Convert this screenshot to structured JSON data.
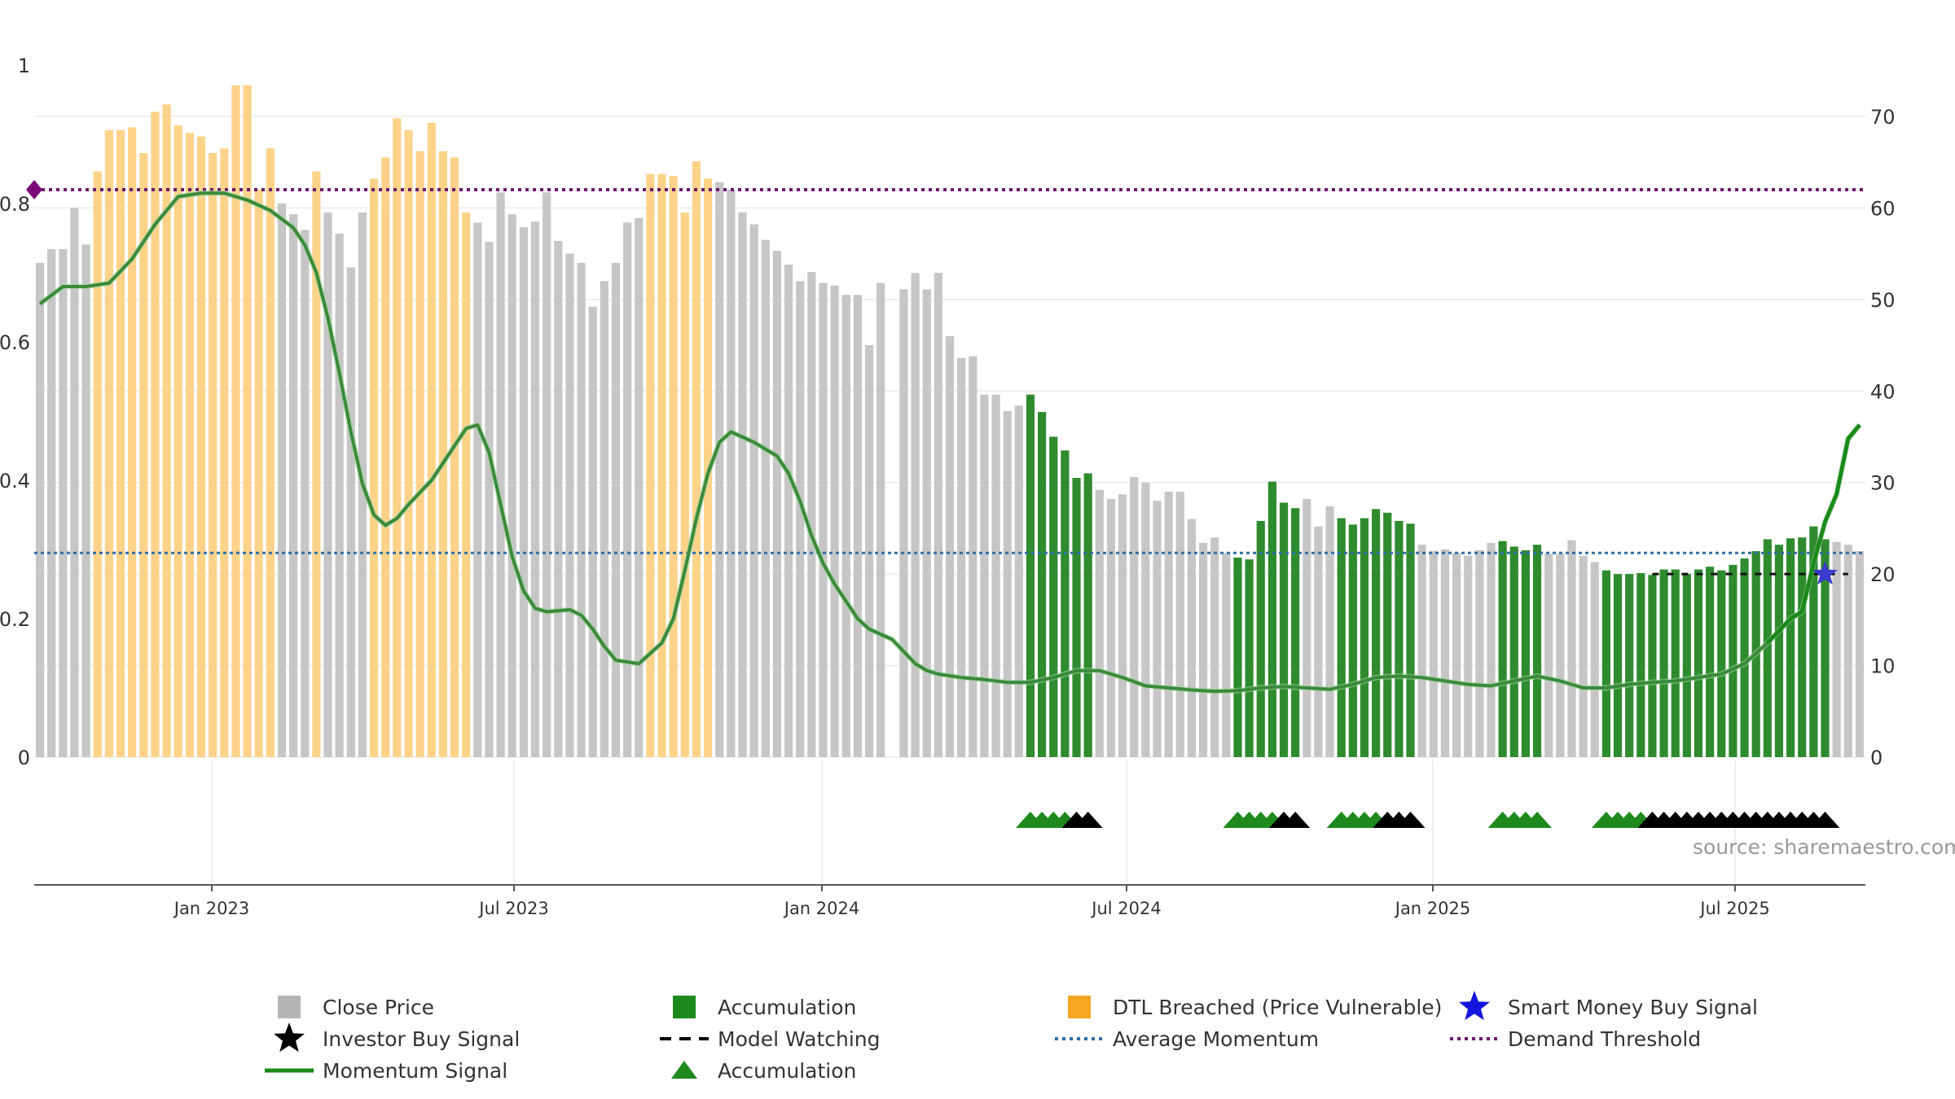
{
  "source_text": "source: sharemaestro.com",
  "colors": {
    "close": "#c6c6c6",
    "accumulation": "#2e8b2e",
    "dtl": "#fdd38a",
    "momentum": "#3a8a3a",
    "momentum_bright": "#1a8a1a",
    "average": "#2f6fa5",
    "threshold": "#6b1a6b",
    "watching": "#111111",
    "star_smart": "#3a3ad0",
    "investor": "#000000"
  },
  "legend": [
    {
      "label": "Close Price",
      "icon": "square",
      "color": "#b5b5b5"
    },
    {
      "label": "Accumulation",
      "icon": "square",
      "color": "#1e8a1e"
    },
    {
      "label": "DTL Breached (Price Vulnerable)",
      "icon": "square",
      "color": "#f5a623"
    },
    {
      "label": "Smart Money Buy Signal",
      "icon": "star",
      "color": "#1515e0"
    },
    {
      "label": "Investor Buy Signal",
      "icon": "star",
      "color": "#000000"
    },
    {
      "label": "Model Watching",
      "icon": "dash",
      "color": "#000000"
    },
    {
      "label": "Average Momentum",
      "icon": "dotline",
      "color": "#2f6fa5"
    },
    {
      "label": "Demand Threshold",
      "icon": "dotline",
      "color": "#6b1a6b"
    },
    {
      "label": "Momentum Signal",
      "icon": "line",
      "color": "#1a8a1a"
    },
    {
      "label": "Accumulation",
      "icon": "triangle",
      "color": "#1e8a1e"
    }
  ],
  "chart_data": {
    "type": "bar",
    "x_ticks": [
      "Jan 2023",
      "Jul 2023",
      "Jan 2024",
      "Jul 2024",
      "Jan 2025",
      "Jul 2025"
    ],
    "y_left": {
      "ticks": [
        "0",
        "0.2",
        "0.4",
        "0.6",
        "0.8",
        "1"
      ],
      "range": [
        0,
        1
      ]
    },
    "y_right": {
      "ticks": [
        "0",
        "10",
        "20",
        "30",
        "40",
        "50",
        "60",
        "70"
      ],
      "range": [
        0,
        75.6
      ]
    },
    "demand_threshold": 0.82,
    "average_momentum": 0.295,
    "model_watching_level": 20,
    "model_watching_range": [
      140,
      157
    ],
    "smart_money_buy": {
      "index": 155,
      "value": 20
    },
    "close_price_scale_right": true,
    "close_price": [
      [
        0,
        54
      ],
      [
        1,
        55.5
      ],
      [
        2,
        55.5
      ],
      [
        3,
        60
      ],
      [
        4,
        56
      ],
      [
        5,
        64
      ],
      [
        6,
        68.5
      ],
      [
        7,
        68.5
      ],
      [
        8,
        68.8
      ],
      [
        9,
        66
      ],
      [
        10,
        70.5
      ],
      [
        11,
        71.3
      ],
      [
        12,
        69
      ],
      [
        13,
        68.2
      ],
      [
        14,
        67.8
      ],
      [
        15,
        66
      ],
      [
        16,
        66.5
      ],
      [
        17,
        73.4
      ],
      [
        18,
        73.4
      ],
      [
        19,
        62
      ],
      [
        20,
        66.5
      ],
      [
        21,
        60.5
      ],
      [
        22,
        59.3
      ],
      [
        23,
        57.6
      ],
      [
        24,
        64
      ],
      [
        25,
        59.5
      ],
      [
        26,
        57.2
      ],
      [
        27,
        53.5
      ],
      [
        28,
        59.5
      ],
      [
        29,
        63.2
      ],
      [
        30,
        65.5
      ],
      [
        31,
        69.8
      ],
      [
        32,
        68.5
      ],
      [
        33,
        66.2
      ],
      [
        34,
        69.3
      ],
      [
        35,
        66.2
      ],
      [
        36,
        65.5
      ],
      [
        37,
        59.5
      ],
      [
        38,
        58.4
      ],
      [
        39,
        56.3
      ],
      [
        40,
        61.7
      ],
      [
        41,
        59.3
      ],
      [
        42,
        57.9
      ],
      [
        43,
        58.5
      ],
      [
        44,
        61.7
      ],
      [
        45,
        56.4
      ],
      [
        46,
        55
      ],
      [
        47,
        54
      ],
      [
        48,
        49.2
      ],
      [
        49,
        52
      ],
      [
        50,
        54
      ],
      [
        51,
        58.4
      ],
      [
        52,
        58.9
      ],
      [
        53,
        63.7
      ],
      [
        54,
        63.7
      ],
      [
        55,
        63.5
      ],
      [
        56,
        59.5
      ],
      [
        57,
        65.1
      ],
      [
        58,
        63.2
      ],
      [
        59,
        62.8
      ],
      [
        60,
        62
      ],
      [
        61,
        59.5
      ],
      [
        62,
        58.2
      ],
      [
        63,
        56.5
      ],
      [
        64,
        55.3
      ],
      [
        65,
        53.8
      ],
      [
        66,
        52
      ],
      [
        67,
        53
      ],
      [
        68,
        51.8
      ],
      [
        69,
        51.5
      ],
      [
        70,
        50.5
      ],
      [
        71,
        50.5
      ],
      [
        72,
        45
      ],
      [
        73,
        51.8
      ],
      [
        74,
        null
      ],
      [
        75,
        51.1
      ],
      [
        76,
        52.9
      ],
      [
        77,
        51.1
      ],
      [
        78,
        52.9
      ],
      [
        79,
        46
      ],
      [
        80,
        43.6
      ],
      [
        81,
        43.8
      ],
      [
        82,
        39.6
      ],
      [
        83,
        39.6
      ],
      [
        84,
        37.8
      ],
      [
        85,
        38.4
      ],
      [
        86,
        39.6
      ],
      [
        87,
        37.7
      ],
      [
        88,
        35
      ],
      [
        89,
        33.5
      ],
      [
        90,
        30.5
      ],
      [
        91,
        31
      ],
      [
        92,
        29.2
      ],
      [
        93,
        28.2
      ],
      [
        94,
        28.7
      ],
      [
        95,
        30.6
      ],
      [
        96,
        30
      ],
      [
        97,
        28
      ],
      [
        98,
        29
      ],
      [
        99,
        29
      ],
      [
        100,
        26
      ],
      [
        101,
        23.4
      ],
      [
        102,
        24
      ],
      [
        103,
        22.3
      ],
      [
        104,
        21.8
      ],
      [
        105,
        21.6
      ],
      [
        106,
        25.8
      ],
      [
        107,
        30.1
      ],
      [
        108,
        27.8
      ],
      [
        109,
        27.2
      ],
      [
        110,
        28.2
      ],
      [
        111,
        25.2
      ],
      [
        112,
        27.4
      ],
      [
        113,
        26.1
      ],
      [
        114,
        25.4
      ],
      [
        115,
        26.1
      ],
      [
        116,
        27.1
      ],
      [
        117,
        26.7
      ],
      [
        118,
        25.8
      ],
      [
        119,
        25.5
      ],
      [
        120,
        23.2
      ],
      [
        121,
        22.5
      ],
      [
        122,
        22.7
      ],
      [
        123,
        22.3
      ],
      [
        124,
        22
      ],
      [
        125,
        22.6
      ],
      [
        126,
        23.4
      ],
      [
        127,
        23.6
      ],
      [
        128,
        23
      ],
      [
        129,
        22.6
      ],
      [
        130,
        23.2
      ],
      [
        131,
        22.2
      ],
      [
        132,
        22.2
      ],
      [
        133,
        23.7
      ],
      [
        134,
        22
      ],
      [
        135,
        21.3
      ],
      [
        136,
        20.4
      ],
      [
        137,
        20
      ],
      [
        138,
        20
      ],
      [
        139,
        20.1
      ],
      [
        140,
        19.9
      ],
      [
        141,
        20.5
      ],
      [
        142,
        20.5
      ],
      [
        143,
        20
      ],
      [
        144,
        20.5
      ],
      [
        145,
        20.8
      ],
      [
        146,
        20.4
      ],
      [
        147,
        21
      ],
      [
        148,
        21.7
      ],
      [
        149,
        22.5
      ],
      [
        150,
        23.8
      ],
      [
        151,
        23.2
      ],
      [
        152,
        23.9
      ],
      [
        153,
        24
      ],
      [
        154,
        25.2
      ],
      [
        155,
        23.8
      ],
      [
        156,
        23.5
      ],
      [
        157,
        23.2
      ],
      [
        158,
        22.5
      ]
    ],
    "accumulation_ranges": [
      [
        86,
        91
      ],
      [
        104,
        109
      ],
      [
        113,
        119
      ],
      [
        127,
        130
      ],
      [
        136,
        155
      ]
    ],
    "dtl_ranges": [
      [
        5,
        20
      ],
      [
        24,
        24
      ],
      [
        29,
        37
      ],
      [
        53,
        58
      ]
    ],
    "momentum_signal": [
      [
        0,
        0.655
      ],
      [
        2,
        0.68
      ],
      [
        4,
        0.68
      ],
      [
        6,
        0.685
      ],
      [
        8,
        0.72
      ],
      [
        10,
        0.77
      ],
      [
        12,
        0.81
      ],
      [
        14,
        0.815
      ],
      [
        16,
        0.815
      ],
      [
        18,
        0.805
      ],
      [
        20,
        0.79
      ],
      [
        22,
        0.765
      ],
      [
        23,
        0.74
      ],
      [
        24,
        0.7
      ],
      [
        25,
        0.635
      ],
      [
        26,
        0.555
      ],
      [
        27,
        0.47
      ],
      [
        28,
        0.395
      ],
      [
        29,
        0.35
      ],
      [
        30,
        0.335
      ],
      [
        31,
        0.345
      ],
      [
        32,
        0.365
      ],
      [
        34,
        0.4
      ],
      [
        36,
        0.45
      ],
      [
        37,
        0.475
      ],
      [
        38,
        0.48
      ],
      [
        39,
        0.44
      ],
      [
        40,
        0.365
      ],
      [
        41,
        0.29
      ],
      [
        42,
        0.24
      ],
      [
        43,
        0.215
      ],
      [
        44,
        0.21
      ],
      [
        46,
        0.213
      ],
      [
        47,
        0.205
      ],
      [
        48,
        0.185
      ],
      [
        49,
        0.16
      ],
      [
        50,
        0.14
      ],
      [
        52,
        0.135
      ],
      [
        54,
        0.165
      ],
      [
        55,
        0.2
      ],
      [
        56,
        0.27
      ],
      [
        57,
        0.345
      ],
      [
        58,
        0.41
      ],
      [
        59,
        0.455
      ],
      [
        60,
        0.47
      ],
      [
        62,
        0.455
      ],
      [
        64,
        0.435
      ],
      [
        65,
        0.41
      ],
      [
        66,
        0.37
      ],
      [
        67,
        0.32
      ],
      [
        68,
        0.28
      ],
      [
        69,
        0.25
      ],
      [
        70,
        0.225
      ],
      [
        71,
        0.2
      ],
      [
        72,
        0.185
      ],
      [
        74,
        0.17
      ],
      [
        76,
        0.135
      ],
      [
        77,
        0.125
      ],
      [
        78,
        0.12
      ],
      [
        80,
        0.115
      ],
      [
        82,
        0.112
      ],
      [
        84,
        0.108
      ],
      [
        86,
        0.108
      ],
      [
        88,
        0.115
      ],
      [
        90,
        0.125
      ],
      [
        92,
        0.125
      ],
      [
        94,
        0.115
      ],
      [
        96,
        0.103
      ],
      [
        98,
        0.1
      ],
      [
        100,
        0.097
      ],
      [
        102,
        0.095
      ],
      [
        104,
        0.096
      ],
      [
        106,
        0.1
      ],
      [
        108,
        0.102
      ],
      [
        110,
        0.1
      ],
      [
        112,
        0.098
      ],
      [
        114,
        0.105
      ],
      [
        116,
        0.115
      ],
      [
        118,
        0.117
      ],
      [
        120,
        0.115
      ],
      [
        122,
        0.11
      ],
      [
        124,
        0.105
      ],
      [
        126,
        0.103
      ],
      [
        128,
        0.11
      ],
      [
        130,
        0.117
      ],
      [
        132,
        0.11
      ],
      [
        134,
        0.1
      ],
      [
        136,
        0.1
      ],
      [
        138,
        0.105
      ],
      [
        140,
        0.108
      ],
      [
        142,
        0.11
      ],
      [
        144,
        0.115
      ],
      [
        146,
        0.12
      ],
      [
        148,
        0.135
      ],
      [
        150,
        0.165
      ],
      [
        152,
        0.2
      ],
      [
        153,
        0.21
      ],
      [
        154,
        0.28
      ],
      [
        155,
        0.34
      ],
      [
        156,
        0.38
      ],
      [
        157,
        0.46
      ],
      [
        158,
        0.48
      ]
    ],
    "accumulation_triangles": [
      86,
      87,
      88,
      89,
      104,
      105,
      106,
      107,
      113,
      114,
      115,
      116,
      127,
      128,
      129,
      130,
      136,
      137,
      138,
      139
    ],
    "investor_triangles": [
      90,
      91,
      108,
      109,
      117,
      118,
      119,
      140,
      141,
      142,
      143,
      144,
      145,
      146,
      147,
      148,
      149,
      150,
      151,
      152,
      153,
      154,
      155
    ]
  }
}
